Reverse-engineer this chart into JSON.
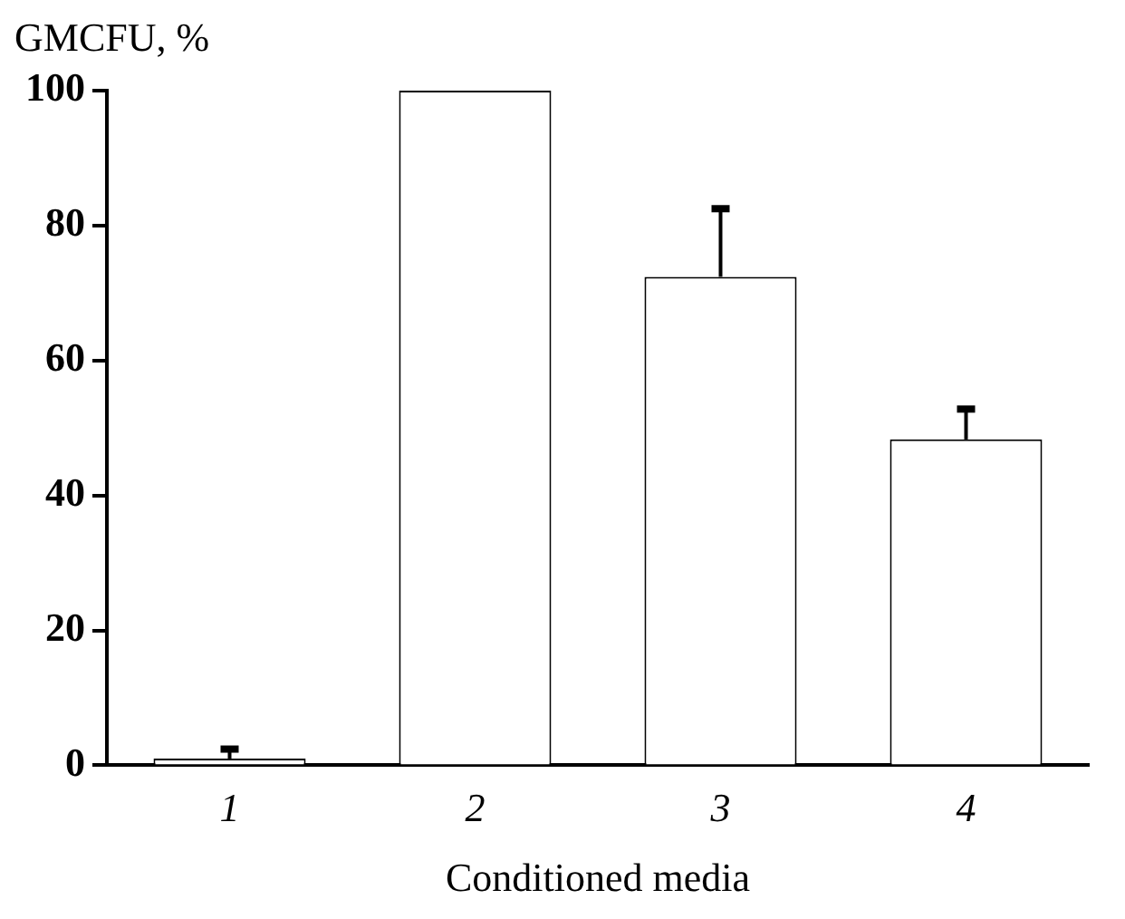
{
  "chart_data": {
    "type": "bar",
    "ylabel": "GMCFU, %",
    "xlabel": "Conditioned media",
    "categories": [
      "1",
      "2",
      "3",
      "4"
    ],
    "values": [
      1,
      100,
      72.4,
      48.3
    ],
    "errors": [
      [
        1,
        2.4
      ],
      null,
      [
        72.4,
        82.5
      ],
      [
        48.3,
        52.8
      ]
    ],
    "color": "#ffffff",
    "ylim": [
      0,
      100
    ],
    "yticks": [
      0,
      20,
      40,
      60,
      80,
      100
    ],
    "grid": false,
    "legend": false
  }
}
